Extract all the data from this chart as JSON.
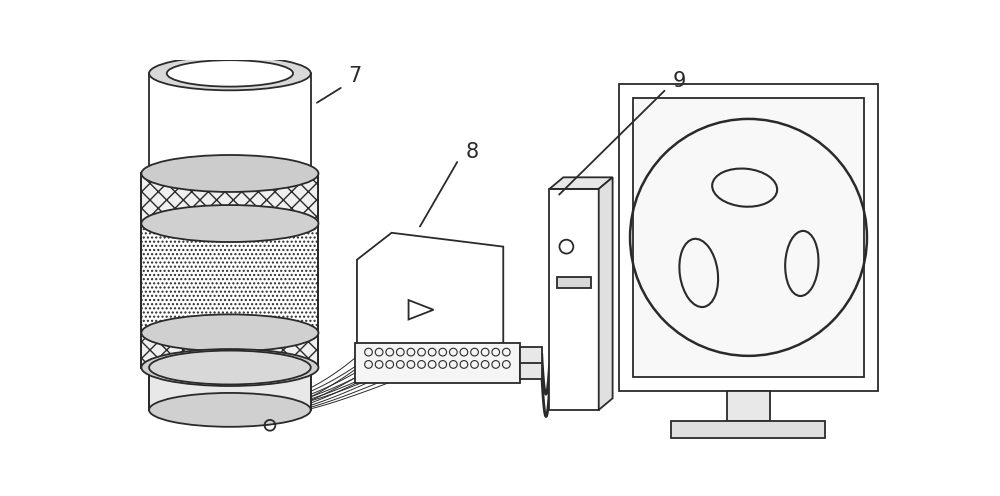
{
  "bg_color": "#ffffff",
  "line_color": "#2a2a2a",
  "label_7": "7",
  "label_8": "8",
  "label_9": "9",
  "label_fontsize": 15,
  "figsize": [
    10.0,
    4.96
  ],
  "dpi": 100
}
